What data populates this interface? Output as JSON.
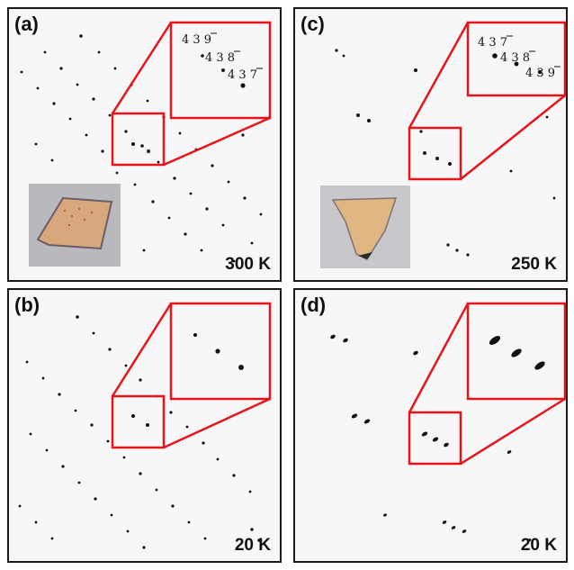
{
  "figure": {
    "panels": [
      {
        "id": "a",
        "label": "(a)",
        "temperature": "300 K",
        "indices": [
          [
            "4",
            "3",
            "9"
          ],
          [
            "4",
            "3",
            "8"
          ],
          [
            "4",
            "3",
            "7"
          ]
        ],
        "has_crystal_photo": true
      },
      {
        "id": "c",
        "label": "(c)",
        "temperature": "250 K",
        "indices": [
          [
            "4",
            "3",
            "7"
          ],
          [
            "4",
            "3",
            "8"
          ],
          [
            "4",
            "3",
            "9"
          ]
        ],
        "has_crystal_photo": true
      },
      {
        "id": "b",
        "label": "(b)",
        "temperature": "20 K",
        "has_crystal_photo": false
      },
      {
        "id": "d",
        "label": "(d)",
        "temperature": "20 K",
        "has_crystal_photo": false
      }
    ],
    "colors": {
      "zoom_box": "#e8141c",
      "border": "#1a1a1a",
      "spot": "#111111",
      "crystal": "#d9a77c"
    }
  }
}
